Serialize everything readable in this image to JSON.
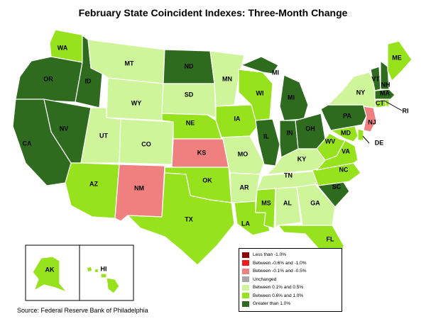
{
  "title": "February State Coincident Indexes: Three-Month Change",
  "source": "Source: Federal Reserve Bank of Philadelphia",
  "colors": {
    "lt_neg1": "#8b0000",
    "neg08_neg1": "#ee1c1c",
    "neg01_neg05": "#f08080",
    "unchanged": "#a8a8a8",
    "p01_p05": "#cef599",
    "p06_p1": "#96e21c",
    "gt1": "#2e6b1f"
  },
  "legend": [
    {
      "key": "lt_neg1",
      "label": "Less than -1.0%"
    },
    {
      "key": "neg08_neg1",
      "label": "Between -0.6% and -1.0%"
    },
    {
      "key": "neg01_neg05",
      "label": "Between -0.1% and -0.5%"
    },
    {
      "key": "unchanged",
      "label": "Unchanged"
    },
    {
      "key": "p01_p05",
      "label": "Between 0.1% and 0.5%"
    },
    {
      "key": "p06_p1",
      "label": "Between 0.6% and 1.0%"
    },
    {
      "key": "gt1",
      "label": "Greater than 1.0%"
    }
  ],
  "states": [
    {
      "abbr": "WA",
      "category": "p06_p1"
    },
    {
      "abbr": "OR",
      "category": "gt1"
    },
    {
      "abbr": "CA",
      "category": "gt1"
    },
    {
      "abbr": "NV",
      "category": "gt1"
    },
    {
      "abbr": "ID",
      "category": "gt1"
    },
    {
      "abbr": "MT",
      "category": "p01_p05"
    },
    {
      "abbr": "WY",
      "category": "p01_p05"
    },
    {
      "abbr": "UT",
      "category": "p01_p05"
    },
    {
      "abbr": "CO",
      "category": "p01_p05"
    },
    {
      "abbr": "AZ",
      "category": "p06_p1"
    },
    {
      "abbr": "NM",
      "category": "neg01_neg05"
    },
    {
      "abbr": "ND",
      "category": "gt1"
    },
    {
      "abbr": "SD",
      "category": "p01_p05"
    },
    {
      "abbr": "NE",
      "category": "p06_p1"
    },
    {
      "abbr": "KS",
      "category": "neg01_neg05"
    },
    {
      "abbr": "OK",
      "category": "p06_p1"
    },
    {
      "abbr": "TX",
      "category": "p06_p1"
    },
    {
      "abbr": "MN",
      "category": "p01_p05"
    },
    {
      "abbr": "IA",
      "category": "p06_p1"
    },
    {
      "abbr": "MO",
      "category": "p01_p05"
    },
    {
      "abbr": "AR",
      "category": "p01_p05"
    },
    {
      "abbr": "LA",
      "category": "p06_p1"
    },
    {
      "abbr": "WI",
      "category": "p06_p1"
    },
    {
      "abbr": "IL",
      "category": "gt1"
    },
    {
      "abbr": "MI",
      "category": "gt1"
    },
    {
      "abbr": "IN",
      "category": "gt1"
    },
    {
      "abbr": "OH",
      "category": "gt1"
    },
    {
      "abbr": "KY",
      "category": "p01_p05"
    },
    {
      "abbr": "TN",
      "category": "p01_p05"
    },
    {
      "abbr": "MS",
      "category": "p06_p1"
    },
    {
      "abbr": "AL",
      "category": "p01_p05"
    },
    {
      "abbr": "GA",
      "category": "p01_p05"
    },
    {
      "abbr": "FL",
      "category": "p06_p1"
    },
    {
      "abbr": "SC",
      "category": "gt1"
    },
    {
      "abbr": "NC",
      "category": "p06_p1"
    },
    {
      "abbr": "VA",
      "category": "p06_p1"
    },
    {
      "abbr": "WV",
      "category": "p06_p1"
    },
    {
      "abbr": "MD",
      "category": "p06_p1"
    },
    {
      "abbr": "DE",
      "category": "p06_p1"
    },
    {
      "abbr": "PA",
      "category": "gt1"
    },
    {
      "abbr": "NJ",
      "category": "neg01_neg05"
    },
    {
      "abbr": "NY",
      "category": "p01_p05"
    },
    {
      "abbr": "CT",
      "category": "p06_p1"
    },
    {
      "abbr": "RI",
      "category": "p06_p1"
    },
    {
      "abbr": "MA",
      "category": "gt1"
    },
    {
      "abbr": "VT",
      "category": "gt1"
    },
    {
      "abbr": "NH",
      "category": "gt1"
    },
    {
      "abbr": "ME",
      "category": "p06_p1"
    },
    {
      "abbr": "AK",
      "category": "p06_p1"
    },
    {
      "abbr": "HI",
      "category": "p06_p1"
    }
  ]
}
